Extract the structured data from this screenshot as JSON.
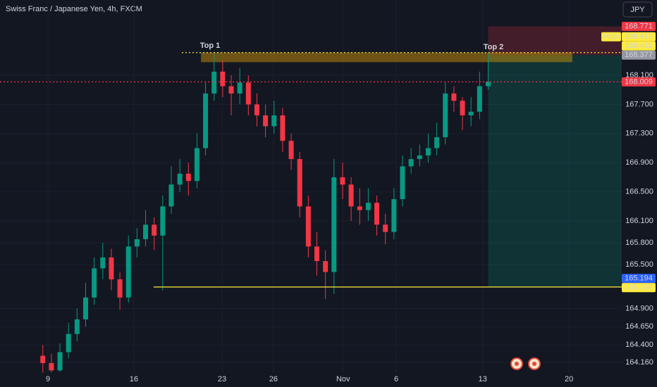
{
  "chart_data": {
    "type": "candlestick",
    "title": "Swiss Franc / Japanese Yen, 4h, FXCM",
    "currency": "JPY",
    "x": [
      15,
      18,
      21,
      24,
      27,
      30,
      33,
      36,
      39,
      42,
      45,
      48,
      51,
      54,
      57,
      60,
      63,
      66,
      69,
      72,
      75,
      78,
      81,
      84,
      87,
      90,
      93,
      96,
      99,
      102,
      105,
      108,
      111,
      114,
      117,
      120,
      123,
      126,
      129,
      132,
      135,
      138,
      141,
      144,
      147,
      150,
      153,
      156,
      159,
      162,
      165,
      168,
      171
    ],
    "open": [
      164.25,
      164.15,
      164.05,
      164.3,
      164.55,
      164.75,
      165.05,
      165.45,
      165.6,
      165.3,
      165.05,
      165.75,
      165.85,
      166.05,
      165.9,
      166.3,
      166.6,
      166.75,
      166.65,
      167.1,
      167.85,
      168.15,
      167.95,
      167.85,
      168.0,
      167.7,
      167.55,
      167.4,
      167.55,
      167.2,
      166.95,
      166.3,
      165.75,
      165.55,
      165.4,
      166.7,
      166.6,
      166.3,
      166.25,
      166.35,
      166.05,
      165.95,
      166.4,
      166.85,
      166.95,
      167.0,
      167.1,
      167.25,
      167.85,
      167.75,
      167.55,
      167.6,
      167.95
    ],
    "high": [
      164.4,
      164.28,
      164.42,
      164.7,
      164.9,
      165.25,
      165.6,
      165.8,
      165.72,
      165.4,
      165.9,
      166.0,
      166.25,
      166.15,
      166.45,
      166.85,
      166.95,
      166.9,
      167.3,
      168.0,
      168.41,
      168.3,
      168.1,
      168.2,
      168.1,
      167.85,
      167.7,
      167.75,
      167.65,
      167.3,
      167.05,
      166.45,
      165.95,
      165.7,
      166.95,
      166.9,
      166.7,
      166.55,
      166.55,
      166.45,
      166.2,
      166.55,
      167.0,
      167.1,
      167.15,
      167.3,
      167.45,
      168.0,
      167.95,
      167.8,
      167.8,
      168.15,
      168.41
    ],
    "low": [
      164.02,
      164.02,
      164.03,
      164.22,
      164.45,
      164.65,
      164.95,
      165.3,
      165.15,
      164.88,
      164.98,
      165.6,
      165.75,
      165.7,
      165.15,
      166.2,
      166.5,
      166.45,
      166.55,
      167.0,
      167.75,
      167.8,
      167.55,
      167.7,
      167.55,
      167.4,
      167.25,
      167.3,
      167.05,
      166.8,
      166.15,
      165.6,
      165.35,
      165.03,
      165.1,
      166.4,
      166.1,
      166.05,
      166.1,
      165.9,
      165.78,
      165.85,
      166.3,
      166.75,
      166.85,
      166.9,
      167.0,
      167.15,
      167.6,
      167.35,
      167.4,
      167.5,
      167.9
    ],
    "close": [
      164.15,
      164.05,
      164.3,
      164.55,
      164.75,
      165.05,
      165.45,
      165.6,
      165.3,
      165.05,
      165.75,
      165.85,
      166.05,
      165.9,
      166.3,
      166.6,
      166.75,
      166.65,
      167.1,
      167.85,
      168.15,
      167.95,
      167.85,
      168.0,
      167.7,
      167.55,
      167.4,
      167.55,
      167.2,
      166.95,
      166.3,
      165.75,
      165.55,
      165.4,
      166.7,
      166.6,
      166.3,
      166.25,
      166.35,
      166.05,
      165.95,
      166.4,
      166.85,
      166.95,
      167.0,
      167.1,
      167.25,
      167.85,
      167.75,
      167.55,
      167.6,
      167.95,
      168.01
    ],
    "up_color": "#089981",
    "down_color": "#f23645",
    "xlim": [
      0,
      217.8
    ],
    "xticks": [
      {
        "value": 16.8,
        "label": "9"
      },
      {
        "value": 46.9,
        "label": "16"
      },
      {
        "value": 77.8,
        "label": "23"
      },
      {
        "value": 95.8,
        "label": "26"
      },
      {
        "value": 120.2,
        "label": "Nov"
      },
      {
        "value": 138.8,
        "label": "6"
      },
      {
        "value": 169.1,
        "label": "13"
      },
      {
        "value": 199.3,
        "label": "20"
      }
    ],
    "ylim": [
      164.015,
      169.133
    ],
    "yticks": [
      {
        "value": 164.16,
        "label": "164.160"
      },
      {
        "value": 164.4,
        "label": "164.400"
      },
      {
        "value": 164.65,
        "label": "164.650"
      },
      {
        "value": 164.9,
        "label": "164.900"
      },
      {
        "value": 165.5,
        "label": "165.500"
      },
      {
        "value": 165.8,
        "label": "165.800"
      },
      {
        "value": 166.1,
        "label": "166.100"
      },
      {
        "value": 166.5,
        "label": "166.500"
      },
      {
        "value": 166.9,
        "label": "166.900"
      },
      {
        "value": 167.3,
        "label": "167.300"
      },
      {
        "value": 167.7,
        "label": "167.700"
      },
      {
        "value": 168.1,
        "label": "168.100"
      }
    ],
    "grid": true,
    "levels": [
      {
        "value": 168.411,
        "from": 63.7,
        "color": "#ffeb3b",
        "style": "dotted"
      },
      {
        "value": 168.009,
        "from": 0,
        "color": "#f23645",
        "style": "dotted"
      },
      {
        "value": 165.194,
        "from": 53.8,
        "color": "#ffeb3b",
        "style": "solid"
      }
    ],
    "zone": {
      "top": 168.411,
      "bottom": 168.28,
      "x": [
        70.4,
        200.5
      ],
      "color": "#b8860b"
    },
    "position": {
      "stop": 168.771,
      "entry": 168.377,
      "target": 165.194,
      "x": [
        171,
        217.8
      ]
    },
    "annotations": [
      {
        "text": "Top 1"
      },
      {
        "text": "Top 2"
      }
    ],
    "price_labels": [
      {
        "value": 168.771,
        "color": "#f23645"
      },
      {
        "name": "High",
        "value": 168.417,
        "color": "#ffeb3b"
      },
      {
        "value": 168.411,
        "color": "#ffeb3b"
      },
      {
        "value": 168.377,
        "color": "#9598a1"
      },
      {
        "value": 168.009,
        "color": "#f23645"
      },
      {
        "value": 165.194,
        "color": "#2962ff"
      },
      {
        "value": 165.186,
        "color": "#ffeb3b"
      }
    ]
  }
}
